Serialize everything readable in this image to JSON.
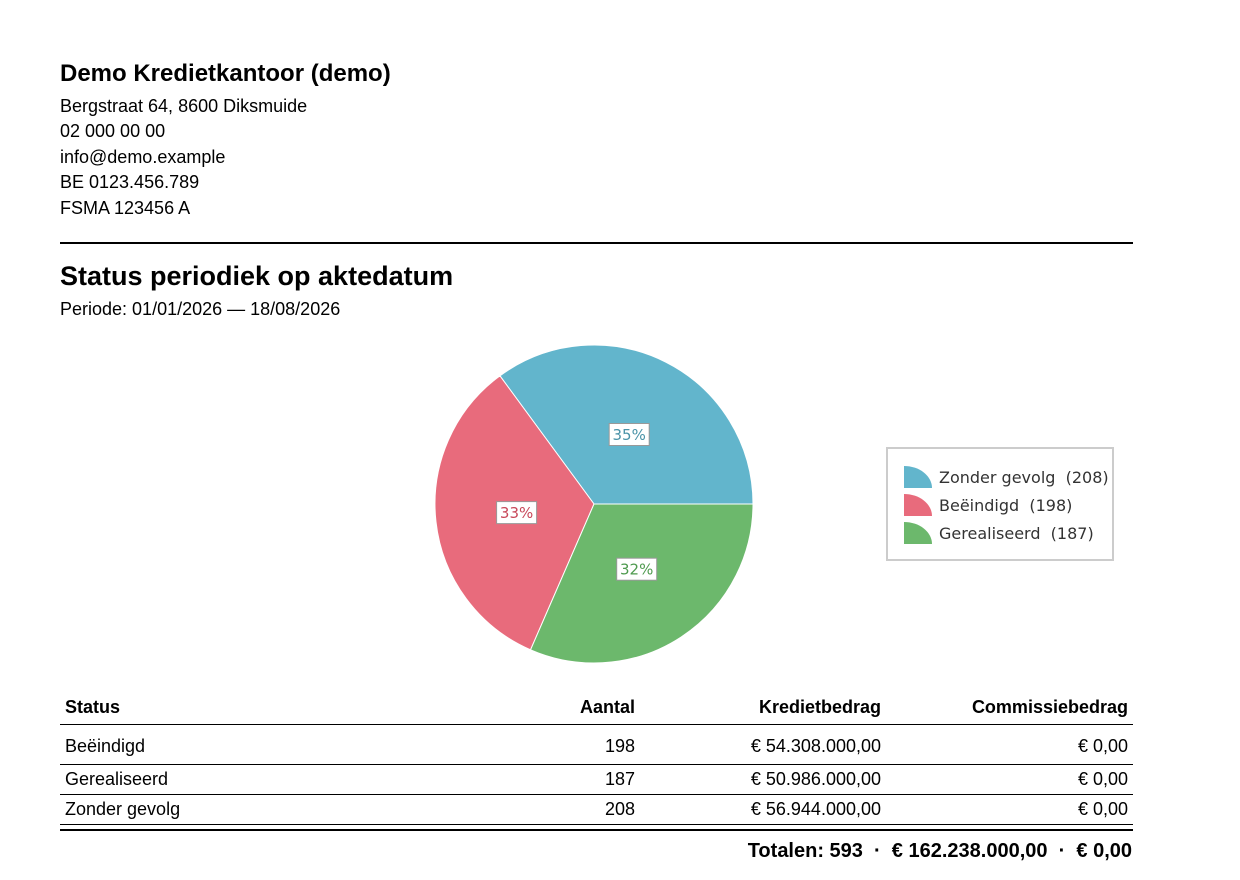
{
  "company": {
    "name": "Demo Kredietkantoor (demo)",
    "address": "Bergstraat 64, 8600 Diksmuide",
    "phone": "02 000 00 00",
    "email": "info@demo.example",
    "vat": "BE 0123.456.789",
    "fsma": "FSMA 123456 A"
  },
  "report": {
    "title": "Status periodiek op aktedatum",
    "period": "Periode: 01/01/2026 — 18/08/2026"
  },
  "chart_data": {
    "type": "pie",
    "slices": [
      {
        "label": "Zonder gevolg",
        "value": 208,
        "percent_label": "35%",
        "color": "#62b5cc",
        "label_color": "#4a93a8"
      },
      {
        "label": "Beëindigd",
        "value": 198,
        "percent_label": "33%",
        "color": "#e86b7c",
        "label_color": "#c8485a"
      },
      {
        "label": "Gerealiseerd",
        "value": 187,
        "percent_label": "32%",
        "color": "#6cb86c",
        "label_color": "#4e9a4e"
      }
    ],
    "legend": {
      "position": "right",
      "items": [
        "Zonder gevolg  (208)",
        "Beëindigd  (198)",
        "Gerealiseerd  (187)"
      ]
    }
  },
  "table": {
    "headers": [
      "Status",
      "Aantal",
      "Kredietbedrag",
      "Commissiebedrag"
    ],
    "rows": [
      [
        "Beëindigd",
        "198",
        "€ 54.308.000,00",
        "€ 0,00"
      ],
      [
        "Gerealiseerd",
        "187",
        "€ 50.986.000,00",
        "€ 0,00"
      ],
      [
        "Zonder gevolg",
        "208",
        "€ 56.944.000,00",
        "€ 0,00"
      ]
    ]
  },
  "totals": "Totalen: 593  ·  € 162.238.000,00  ·  € 0,00"
}
